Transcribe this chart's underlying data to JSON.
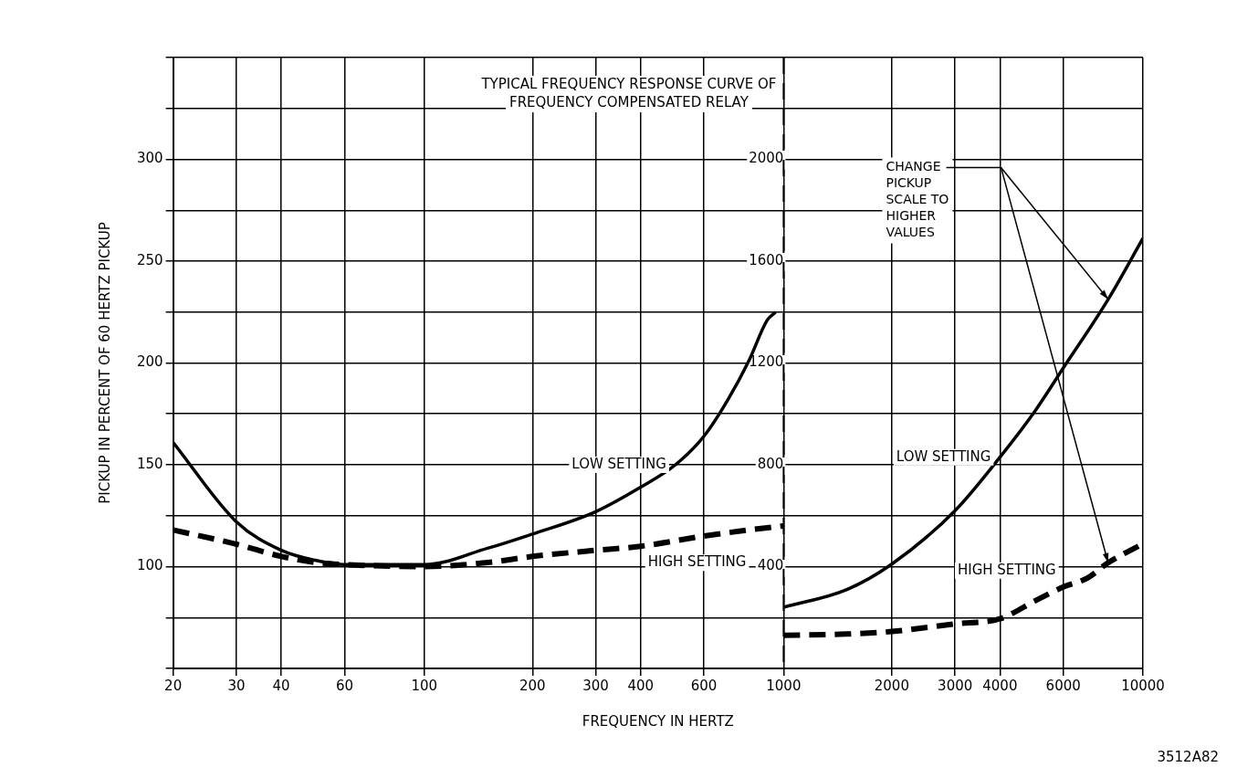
{
  "chart_data": {
    "type": "line",
    "title": "TYPICAL FREQUENCY RESPONSE CURVE OF\nFREQUENCY COMPENSATED RELAY",
    "xlabel": "FREQUENCY IN HERTZ",
    "ylabel": "PICKUP IN PERCENT OF 60 HERTZ PICKUP",
    "log": "x",
    "xlim": [
      20,
      10000
    ],
    "xticks": [
      20,
      30,
      40,
      60,
      100,
      200,
      300,
      400,
      600,
      1000,
      2000,
      3000,
      4000,
      6000,
      10000
    ],
    "ylim": [
      50,
      350
    ],
    "yticks": [
      {
        "value": 50,
        "label": null
      },
      {
        "value": 75,
        "label": null
      },
      100,
      {
        "value": 125,
        "label": null
      },
      150,
      {
        "value": 175,
        "label": null
      },
      200,
      {
        "value": 225,
        "label": null
      },
      250,
      {
        "value": 275,
        "label": null
      },
      300,
      {
        "value": 325,
        "label": null
      },
      {
        "value": 350,
        "label": null
      }
    ],
    "y2lim": [
      0,
      2400
    ],
    "y2ticks": [
      400,
      800,
      1200,
      1600,
      2000
    ],
    "grid": true,
    "legend": false,
    "marker": "none",
    "ref_lines": [
      {
        "axis": "x",
        "value": 1000,
        "line_style": "dashed",
        "color": "#000000"
      }
    ],
    "series": [
      {
        "name": "LOW SETTING",
        "color": "#000000",
        "line_style": "solid",
        "x": [
          20,
          30,
          40,
          50,
          60,
          80,
          100,
          150,
          200,
          300,
          400,
          500,
          600,
          700,
          800,
          900,
          950
        ],
        "values": [
          161,
          122,
          108,
          103,
          101,
          101,
          101,
          109,
          116,
          127,
          139,
          150,
          164,
          182,
          201,
          221,
          225
        ]
      },
      {
        "name": "HIGH SETTING",
        "color": "#000000",
        "line_style": "dashed",
        "x": [
          20,
          30,
          40,
          50,
          60,
          100,
          150,
          200,
          300,
          400,
          600,
          800,
          1000
        ],
        "values": [
          118,
          111,
          105,
          102,
          101,
          100,
          102,
          105,
          108,
          110,
          115,
          118,
          120
        ]
      },
      {
        "name": "LOW SETTING",
        "color": "#000000",
        "line_style": "solid",
        "axis": "y2",
        "x": [
          1000,
          1500,
          2000,
          3000,
          4000,
          5000,
          6000,
          8000,
          10000
        ],
        "values": [
          240,
          310,
          410,
          620,
          830,
          1010,
          1180,
          1450,
          1690
        ]
      },
      {
        "name": "HIGH SETTING",
        "color": "#000000",
        "line_style": "dashed",
        "axis": "y2",
        "x": [
          1000,
          1500,
          2000,
          3000,
          4000,
          5000,
          6000,
          7000,
          8000,
          10000
        ],
        "values": [
          130,
          135,
          145,
          175,
          195,
          265,
          320,
          355,
          415,
          490
        ]
      }
    ],
    "annotations": [
      "CHANGE PICKUP SCALE TO HIGHER VALUES",
      "3512A82"
    ]
  }
}
